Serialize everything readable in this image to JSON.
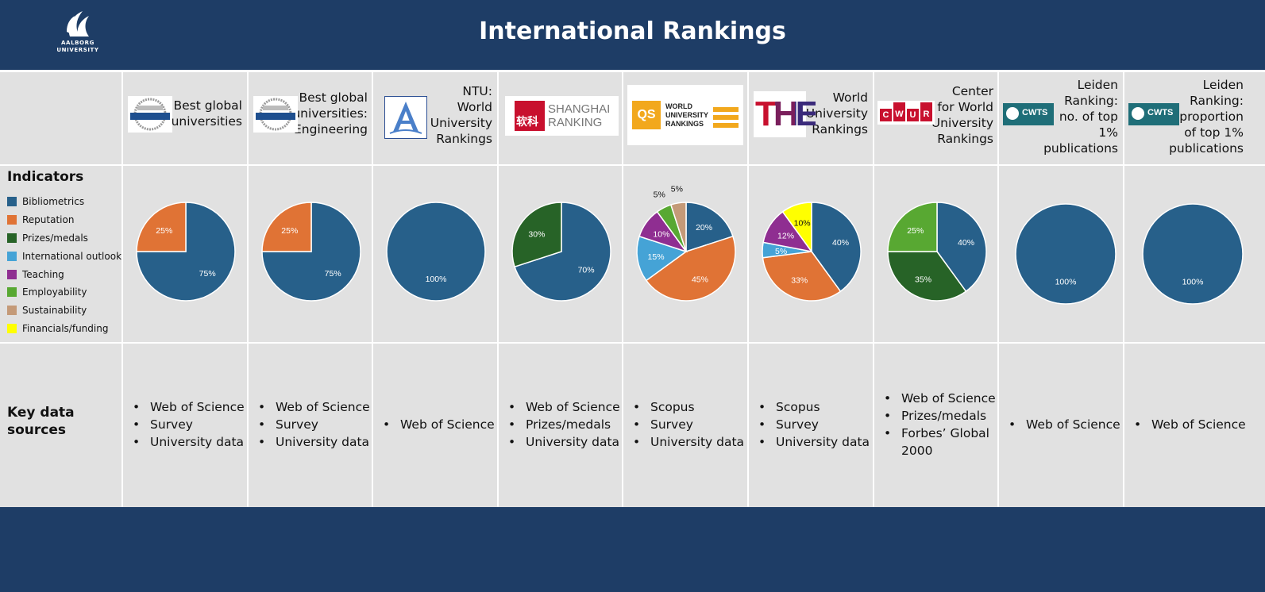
{
  "header": {
    "title": "International Rankings",
    "logo_lines": [
      "AALBORG",
      "UNIVERSITY"
    ]
  },
  "labels": {
    "indicators": "Indicators",
    "key_sources": [
      "Key data",
      "sources"
    ]
  },
  "legend": [
    {
      "name": "Bibliometrics",
      "color": "#27608a"
    },
    {
      "name": "Reputation",
      "color": "#e07335"
    },
    {
      "name": "Prizes/medals",
      "color": "#276327"
    },
    {
      "name": "International outlook",
      "color": "#45a3d6"
    },
    {
      "name": "Teaching",
      "color": "#8f2e91"
    },
    {
      "name": "Employability",
      "color": "#58a832"
    },
    {
      "name": "Sustainability",
      "color": "#c49a78"
    },
    {
      "name": "Financials/funding",
      "color": "#ffff00"
    }
  ],
  "rankings": [
    {
      "name": [
        "Best global",
        "universities"
      ],
      "logo": "usnews",
      "sources": [
        "Web of Science",
        "Survey",
        "University data"
      ]
    },
    {
      "name": [
        "Best global",
        "universities:",
        "Engineering"
      ],
      "logo": "usnews",
      "sources": [
        "Web of Science",
        "Survey",
        "University data"
      ]
    },
    {
      "name": [
        "NTU:",
        "World",
        "University",
        "Rankings"
      ],
      "logo": "ntu",
      "sources": [
        "Web of Science"
      ]
    },
    {
      "name": [],
      "logo": "shanghai",
      "logo_text": [
        "SHANGHAI",
        "RANKING"
      ],
      "logo_cn": "软科",
      "sources": [
        "Web of Science",
        "Prizes/medals",
        "University data"
      ]
    },
    {
      "name": [],
      "logo": "qs",
      "logo_text": [
        "WORLD",
        "UNIVERSITY",
        "RANKINGS"
      ],
      "logo_mark": "QS",
      "sources": [
        "Scopus",
        "Survey",
        "University data"
      ]
    },
    {
      "name": [
        "World",
        "University",
        "Rankings"
      ],
      "logo": "the",
      "logo_mark": "THE",
      "sources": [
        "Scopus",
        "Survey",
        "University data"
      ]
    },
    {
      "name": [
        "Center",
        "for World",
        "University",
        "Rankings"
      ],
      "logo": "cwur",
      "logo_letters": [
        "C",
        "W",
        "U",
        "R"
      ],
      "sources": [
        "Web of Science",
        "Prizes/medals",
        "Forbes’ Global 2000"
      ]
    },
    {
      "name": [
        "Leiden",
        "Ranking:",
        "no. of top",
        "1%",
        "publications"
      ],
      "logo": "cwts",
      "logo_mark": "CWTS",
      "sources": [
        "Web of Science"
      ]
    },
    {
      "name": [
        "Leiden",
        "Ranking:",
        "proportion",
        "of top 1%",
        "publications"
      ],
      "logo": "cwts",
      "logo_mark": "CWTS",
      "sources": [
        "Web of Science"
      ]
    }
  ],
  "chart_data": [
    {
      "type": "pie",
      "slices": [
        {
          "category": "Bibliometrics",
          "value": 75,
          "label": "75%"
        },
        {
          "category": "Reputation",
          "value": 25,
          "label": "25%"
        }
      ]
    },
    {
      "type": "pie",
      "slices": [
        {
          "category": "Bibliometrics",
          "value": 75,
          "label": "75%"
        },
        {
          "category": "Reputation",
          "value": 25,
          "label": "25%"
        }
      ]
    },
    {
      "type": "pie",
      "slices": [
        {
          "category": "Bibliometrics",
          "value": 100,
          "label": "100%"
        }
      ]
    },
    {
      "type": "pie",
      "slices": [
        {
          "category": "Bibliometrics",
          "value": 70,
          "label": "70%"
        },
        {
          "category": "Prizes/medals",
          "value": 30,
          "label": "30%"
        }
      ]
    },
    {
      "type": "pie",
      "slices": [
        {
          "category": "Bibliometrics",
          "value": 20,
          "label": "20%"
        },
        {
          "category": "Reputation",
          "value": 45,
          "label": "45%"
        },
        {
          "category": "International outlook",
          "value": 15,
          "label": "15%"
        },
        {
          "category": "Teaching",
          "value": 10,
          "label": "10%"
        },
        {
          "category": "Employability",
          "value": 5,
          "label": "5%"
        },
        {
          "category": "Sustainability",
          "value": 5,
          "label": "5%"
        }
      ]
    },
    {
      "type": "pie",
      "slices": [
        {
          "category": "Bibliometrics",
          "value": 40,
          "label": "40%"
        },
        {
          "category": "Reputation",
          "value": 33,
          "label": "33%"
        },
        {
          "category": "International outlook",
          "value": 5,
          "label": "5%"
        },
        {
          "category": "Teaching",
          "value": 12,
          "label": "12%"
        },
        {
          "category": "Financials/funding",
          "value": 10,
          "label": "10%"
        }
      ]
    },
    {
      "type": "pie",
      "slices": [
        {
          "category": "Bibliometrics",
          "value": 40,
          "label": "40%"
        },
        {
          "category": "Prizes/medals",
          "value": 35,
          "label": "35%"
        },
        {
          "category": "Employability",
          "value": 25,
          "label": "25%"
        }
      ]
    },
    {
      "type": "pie",
      "slices": [
        {
          "category": "Bibliometrics",
          "value": 100,
          "label": "100%"
        }
      ]
    },
    {
      "type": "pie",
      "slices": [
        {
          "category": "Bibliometrics",
          "value": 100,
          "label": "100%"
        }
      ]
    }
  ]
}
